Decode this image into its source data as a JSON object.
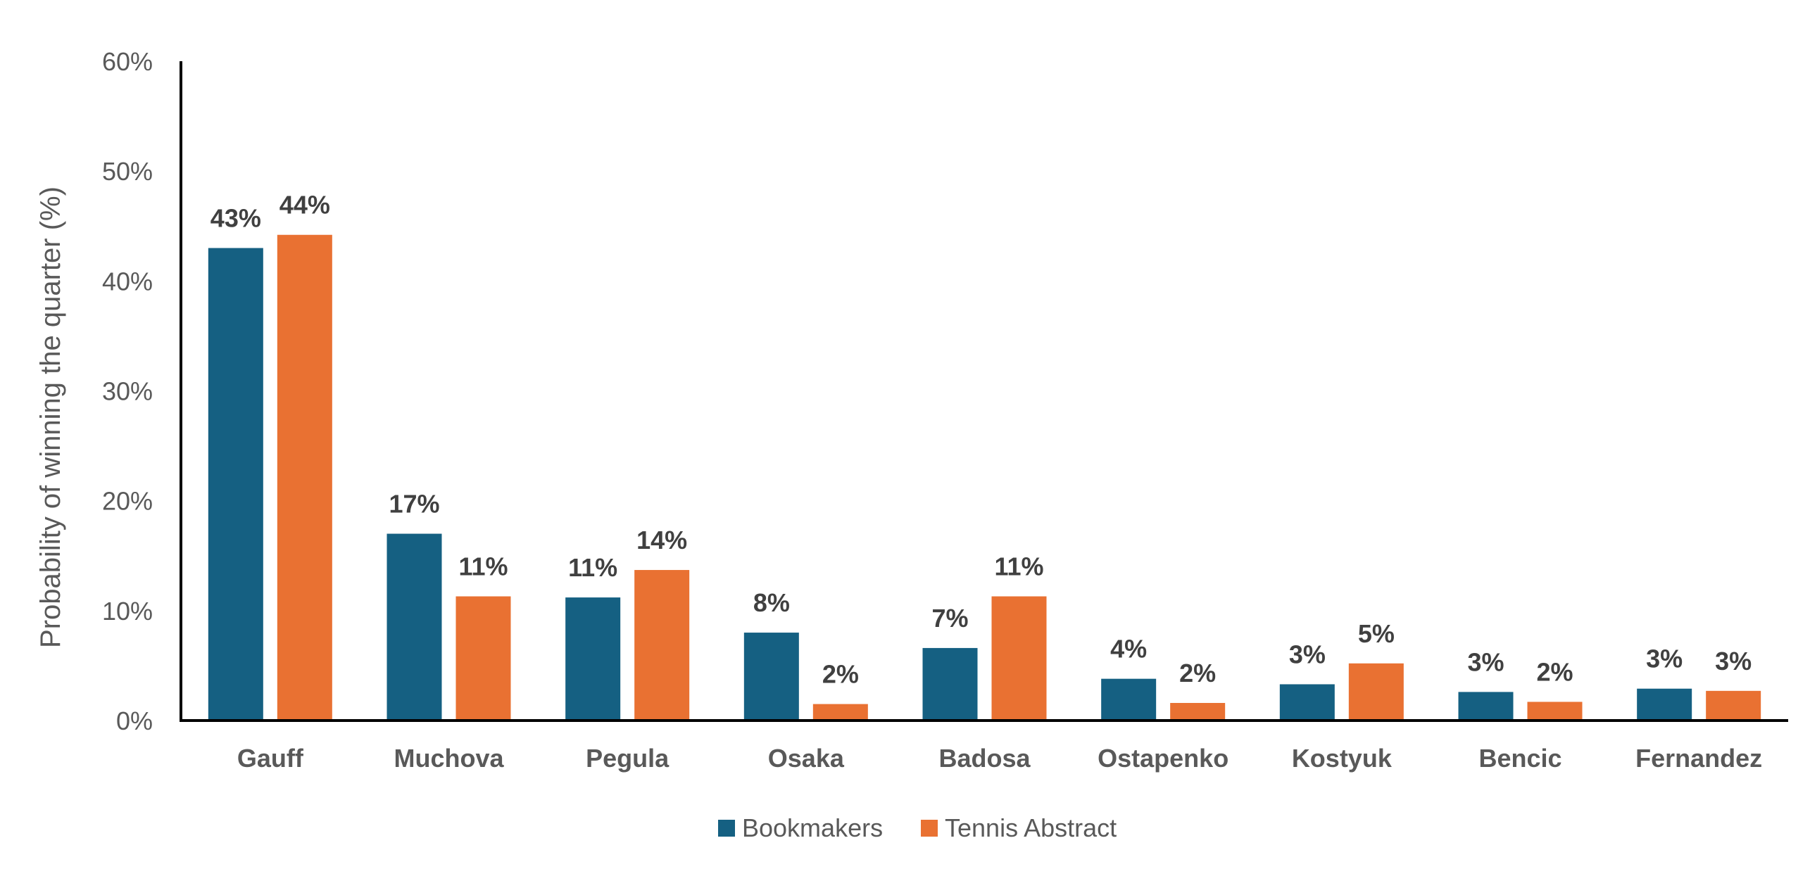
{
  "chart_data": {
    "type": "bar",
    "title": "",
    "xlabel": "",
    "ylabel": "Probability of winning the quarter (%)",
    "ylim": [
      0,
      60
    ],
    "yticks": [
      "0%",
      "10%",
      "20%",
      "30%",
      "40%",
      "50%",
      "60%"
    ],
    "ytick_values": [
      0,
      10,
      20,
      30,
      40,
      50,
      60
    ],
    "grid": false,
    "legend_position": "bottom",
    "categories": [
      "Gauff",
      "Muchova",
      "Pegula",
      "Osaka",
      "Badosa",
      "Ostapenko",
      "Kostyuk",
      "Bencic",
      "Fernandez"
    ],
    "series": [
      {
        "name": "Bookmakers",
        "color": "#156082",
        "values": [
          43,
          17,
          11.2,
          8,
          6.6,
          3.8,
          3.3,
          2.6,
          2.9
        ],
        "labels": [
          "43%",
          "17%",
          "11%",
          "8%",
          "7%",
          "4%",
          "3%",
          "3%",
          "3%"
        ]
      },
      {
        "name": "Tennis Abstract",
        "color": "#E97132",
        "values": [
          44.2,
          11.3,
          13.7,
          1.5,
          11.3,
          1.6,
          5.2,
          1.7,
          2.7
        ],
        "labels": [
          "44%",
          "11%",
          "14%",
          "2%",
          "11%",
          "2%",
          "5%",
          "2%",
          "3%"
        ]
      }
    ]
  }
}
